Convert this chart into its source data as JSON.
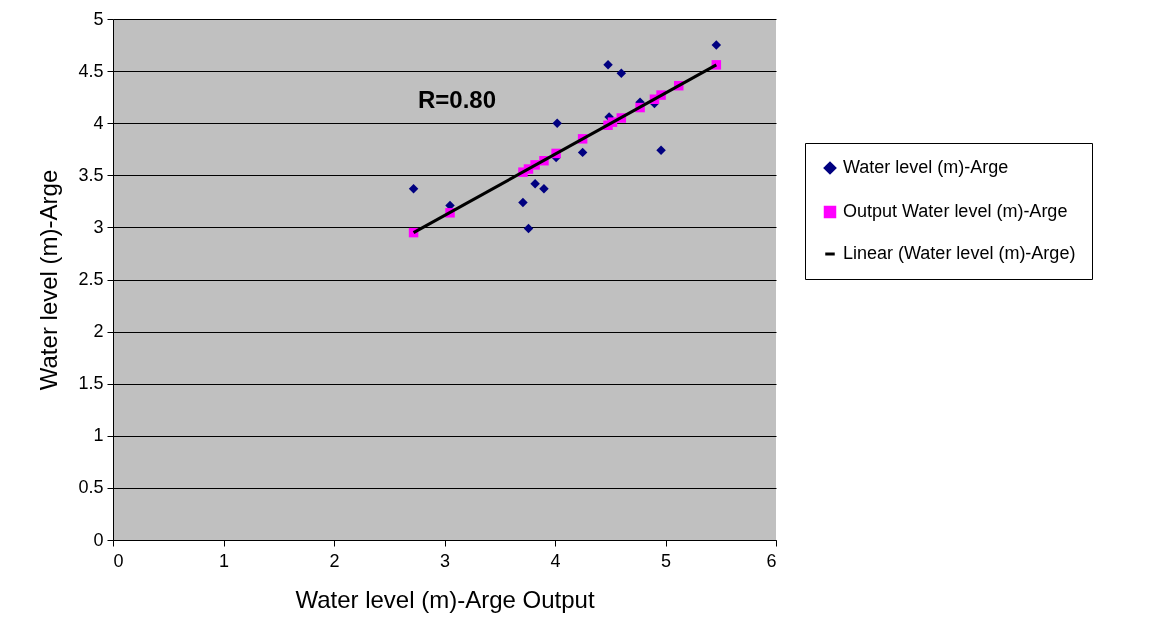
{
  "chart_data": {
    "type": "scatter",
    "xlabel": "Water level (m)-Arge Output",
    "ylabel": "Water level (m)-Arge",
    "xlim": [
      0,
      6
    ],
    "xticks": [
      0,
      1,
      2,
      3,
      4,
      5,
      6
    ],
    "ylim": [
      0,
      5
    ],
    "yticks": [
      0,
      0.5,
      1,
      1.5,
      2,
      2.5,
      3,
      3.5,
      4,
      4.5,
      5
    ],
    "grid": "y",
    "legend": "right",
    "annotations": [
      "R=0.80"
    ],
    "series": [
      {
        "name": "Water level (m)-Arge",
        "color": "#000080",
        "marker": "diamond",
        "x": [
          2.72,
          3.05,
          3.71,
          3.76,
          3.82,
          3.9,
          4.01,
          4.02,
          4.25,
          4.48,
          4.49,
          4.6,
          4.77,
          4.9,
          4.96,
          5.46
        ],
        "values": [
          3.37,
          3.21,
          3.24,
          2.99,
          3.42,
          3.37,
          3.67,
          4.0,
          3.72,
          4.56,
          4.06,
          4.48,
          4.2,
          4.19,
          3.74,
          4.75
        ]
      },
      {
        "name": "Output Water level (m)-Arge",
        "color": "#ff00ff",
        "marker": "square",
        "x": [
          2.72,
          3.05,
          3.71,
          3.76,
          3.82,
          3.9,
          4.01,
          4.25,
          4.48,
          4.52,
          4.6,
          4.77,
          4.9,
          4.96,
          5.12,
          5.46
        ],
        "values": [
          2.95,
          3.14,
          3.53,
          3.56,
          3.6,
          3.64,
          3.71,
          3.85,
          3.98,
          4.01,
          4.05,
          4.15,
          4.23,
          4.27,
          4.36,
          4.56
        ]
      },
      {
        "name": "Linear (Water level (m)-Arge)",
        "type": "line",
        "color": "#000000",
        "line_style": "solid",
        "x": [
          2.72,
          5.46
        ],
        "values": [
          2.95,
          4.56
        ]
      }
    ]
  }
}
